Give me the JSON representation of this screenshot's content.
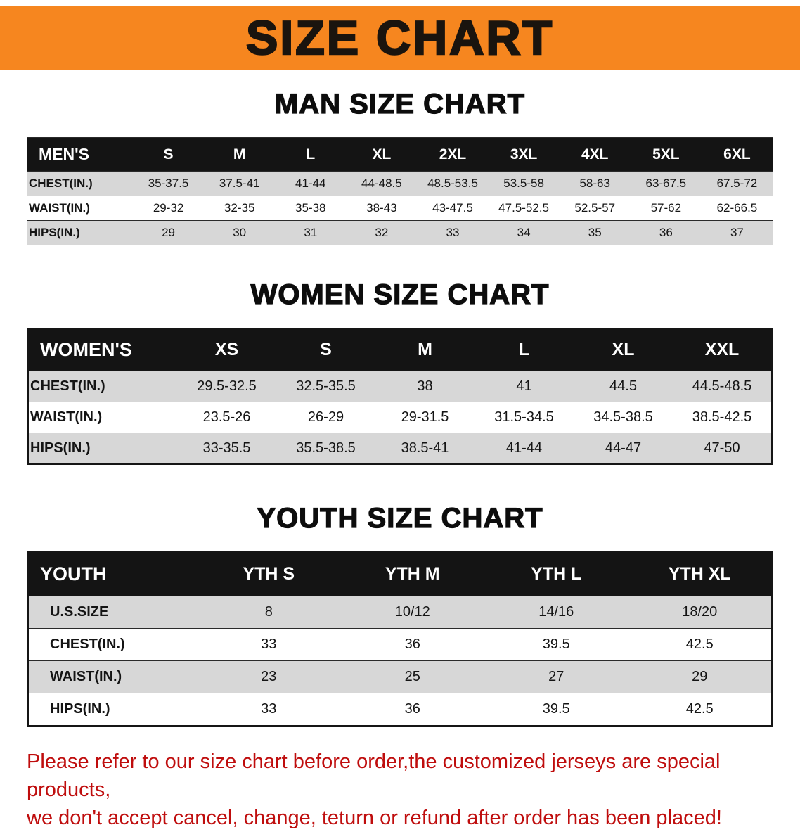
{
  "banner": {
    "title": "SIZE CHART"
  },
  "colors": {
    "banner_bg": "#f6861f",
    "table_header_bg": "#141414",
    "row_alt_bg": "#d7d7d7",
    "notice_text": "#bf0d0d"
  },
  "sections": [
    {
      "id": "men",
      "heading": "MAN SIZE CHART",
      "header": [
        "MEN'S",
        "S",
        "M",
        "L",
        "XL",
        "2XL",
        "3XL",
        "4XL",
        "5XL",
        "6XL"
      ],
      "rows": [
        {
          "label": "CHEST(IN.)",
          "values": [
            "35-37.5",
            "37.5-41",
            "41-44",
            "44-48.5",
            "48.5-53.5",
            "53.5-58",
            "58-63",
            "63-67.5",
            "67.5-72"
          ]
        },
        {
          "label": "WAIST(IN.)",
          "values": [
            "29-32",
            "32-35",
            "35-38",
            "38-43",
            "43-47.5",
            "47.5-52.5",
            "52.5-57",
            "57-62",
            "62-66.5"
          ]
        },
        {
          "label": "HIPS(IN.)",
          "values": [
            "29",
            "30",
            "31",
            "32",
            "33",
            "34",
            "35",
            "36",
            "37"
          ]
        }
      ]
    },
    {
      "id": "women",
      "heading": "WOMEN SIZE CHART",
      "header": [
        "WOMEN'S",
        "XS",
        "S",
        "M",
        "L",
        "XL",
        "XXL"
      ],
      "rows": [
        {
          "label": "CHEST(IN.)",
          "values": [
            "29.5-32.5",
            "32.5-35.5",
            "38",
            "41",
            "44.5",
            "44.5-48.5"
          ]
        },
        {
          "label": "WAIST(IN.)",
          "values": [
            "23.5-26",
            "26-29",
            "29-31.5",
            "31.5-34.5",
            "34.5-38.5",
            "38.5-42.5"
          ]
        },
        {
          "label": "HIPS(IN.)",
          "values": [
            "33-35.5",
            "35.5-38.5",
            "38.5-41",
            "41-44",
            "44-47",
            "47-50"
          ]
        }
      ]
    },
    {
      "id": "youth",
      "heading": "YOUTH SIZE CHART",
      "header": [
        "YOUTH",
        "YTH S",
        "YTH M",
        "YTH L",
        "YTH XL"
      ],
      "rows": [
        {
          "label": "U.S.SIZE",
          "values": [
            "8",
            "10/12",
            "14/16",
            "18/20"
          ]
        },
        {
          "label": "CHEST(IN.)",
          "values": [
            "33",
            "36",
            "39.5",
            "42.5"
          ]
        },
        {
          "label": "WAIST(IN.)",
          "values": [
            "23",
            "25",
            "27",
            "29"
          ]
        },
        {
          "label": "HIPS(IN.)",
          "values": [
            "33",
            "36",
            "39.5",
            "42.5"
          ]
        }
      ]
    }
  ],
  "footer": {
    "line1": "Please refer to our size chart before order,the customized jerseys are special products,",
    "line2": "we don't accept cancel, change, teturn or refund after order has been placed!"
  }
}
